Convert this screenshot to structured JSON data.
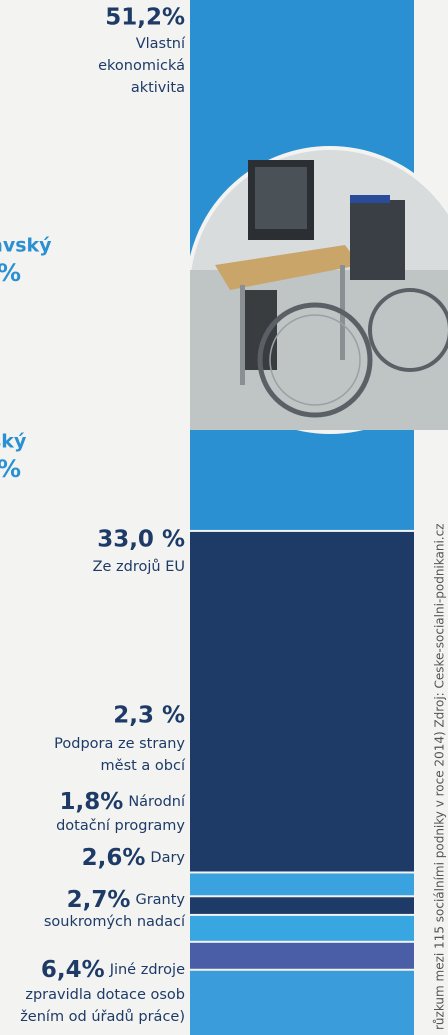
{
  "chart_data": {
    "type": "stacked-bar",
    "categories": [
      [
        "Vlastní",
        "ekonomická",
        "aktivita"
      ],
      [
        "Ze zdrojů EU"
      ],
      [
        "Podpora ze strany",
        "měst a obcí"
      ],
      [
        "Národní",
        "dotační programy"
      ],
      [
        "Dary"
      ],
      [
        "Granty",
        "soukromých nadací"
      ],
      [
        "Jiné zdroje",
        "zpravidla dotace osob",
        "žením od úřadů práce)"
      ]
    ],
    "values": [
      51.2,
      33.0,
      2.3,
      1.8,
      2.6,
      2.7,
      6.4
    ],
    "value_labels": [
      "51,2%",
      "33,0 %",
      "2,3 %",
      "1,8%",
      "2,6%",
      "2,7%",
      "6,4%"
    ],
    "colors": [
      "#2a90d2",
      "#1e3b68",
      "#3aa2de",
      "#1e3b68",
      "#38a6e0",
      "#4a5ea8",
      "#3a9cda"
    ],
    "ylim": [
      0,
      100
    ],
    "cropped_labels": [
      "avský",
      "%",
      "ský",
      "%"
    ],
    "source": "růzkum mezi 115 sociálními podniky v roce 2014) Zdroj: Ceske-socialni-podnikani.cz"
  }
}
